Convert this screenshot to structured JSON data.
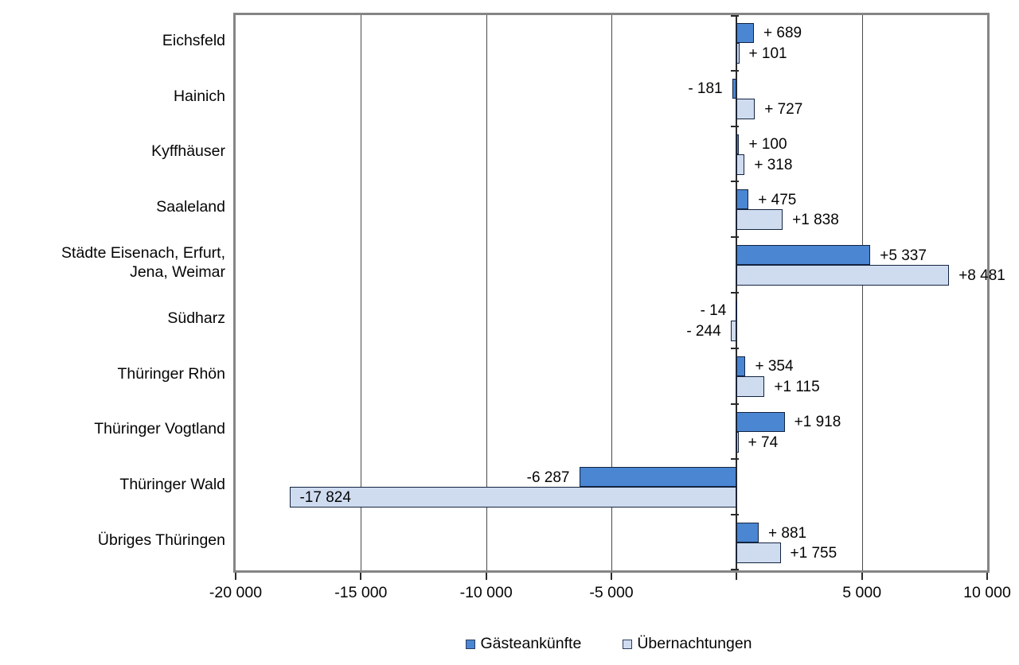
{
  "chart_data": {
    "type": "bar",
    "orientation": "horizontal",
    "title": "",
    "xlabel": "",
    "ylabel": "",
    "xlim": [
      -20000,
      10000
    ],
    "grid": true,
    "legend_position": "bottom",
    "categories": [
      "Eichsfeld",
      "Hainich",
      "Kyffhäuser",
      "Saaleland",
      "Städte Eisenach, Erfurt,\nJena, Weimar",
      "Südharz",
      "Thüringer Rhön",
      "Thüringer Vogtland",
      "Thüringer Wald",
      "Übriges Thüringen"
    ],
    "x_ticks": [
      -20000,
      -15000,
      -10000,
      -5000,
      0,
      5000,
      10000
    ],
    "x_tick_labels": [
      "-20 000",
      "-15 000",
      "-10 000",
      "-5 000",
      "",
      "5 000",
      "10 000"
    ],
    "series": [
      {
        "name": "Gästeankünfte",
        "color": "#4a86d2",
        "border_color": "#13233f",
        "values": [
          689,
          -181,
          100,
          475,
          5337,
          -14,
          354,
          1918,
          -6287,
          881
        ],
        "labels": [
          "+ 689",
          "- 181",
          "+ 100",
          "+ 475",
          "+5 337",
          "- 14",
          "+ 354",
          "+1 918",
          "-6 287",
          "+ 881"
        ],
        "label_inside": [
          false,
          false,
          false,
          false,
          false,
          false,
          false,
          false,
          false,
          false
        ]
      },
      {
        "name": "Übernachtungen",
        "color": "#cfdcf0",
        "border_color": "#13233f",
        "values": [
          101,
          727,
          318,
          1838,
          8481,
          -244,
          1115,
          74,
          -17824,
          1755
        ],
        "labels": [
          "+ 101",
          "+ 727",
          "+ 318",
          "+1 838",
          "+8 481",
          "- 244",
          "+1 115",
          "+ 74",
          "-17 824",
          "+1 755"
        ],
        "label_inside": [
          false,
          false,
          false,
          false,
          false,
          false,
          false,
          false,
          true,
          false
        ]
      }
    ]
  },
  "legend": {
    "items": [
      {
        "label": "Gästeankünfte",
        "color": "#4a86d2"
      },
      {
        "label": "Übernachtungen",
        "color": "#cfdcf0"
      }
    ]
  }
}
